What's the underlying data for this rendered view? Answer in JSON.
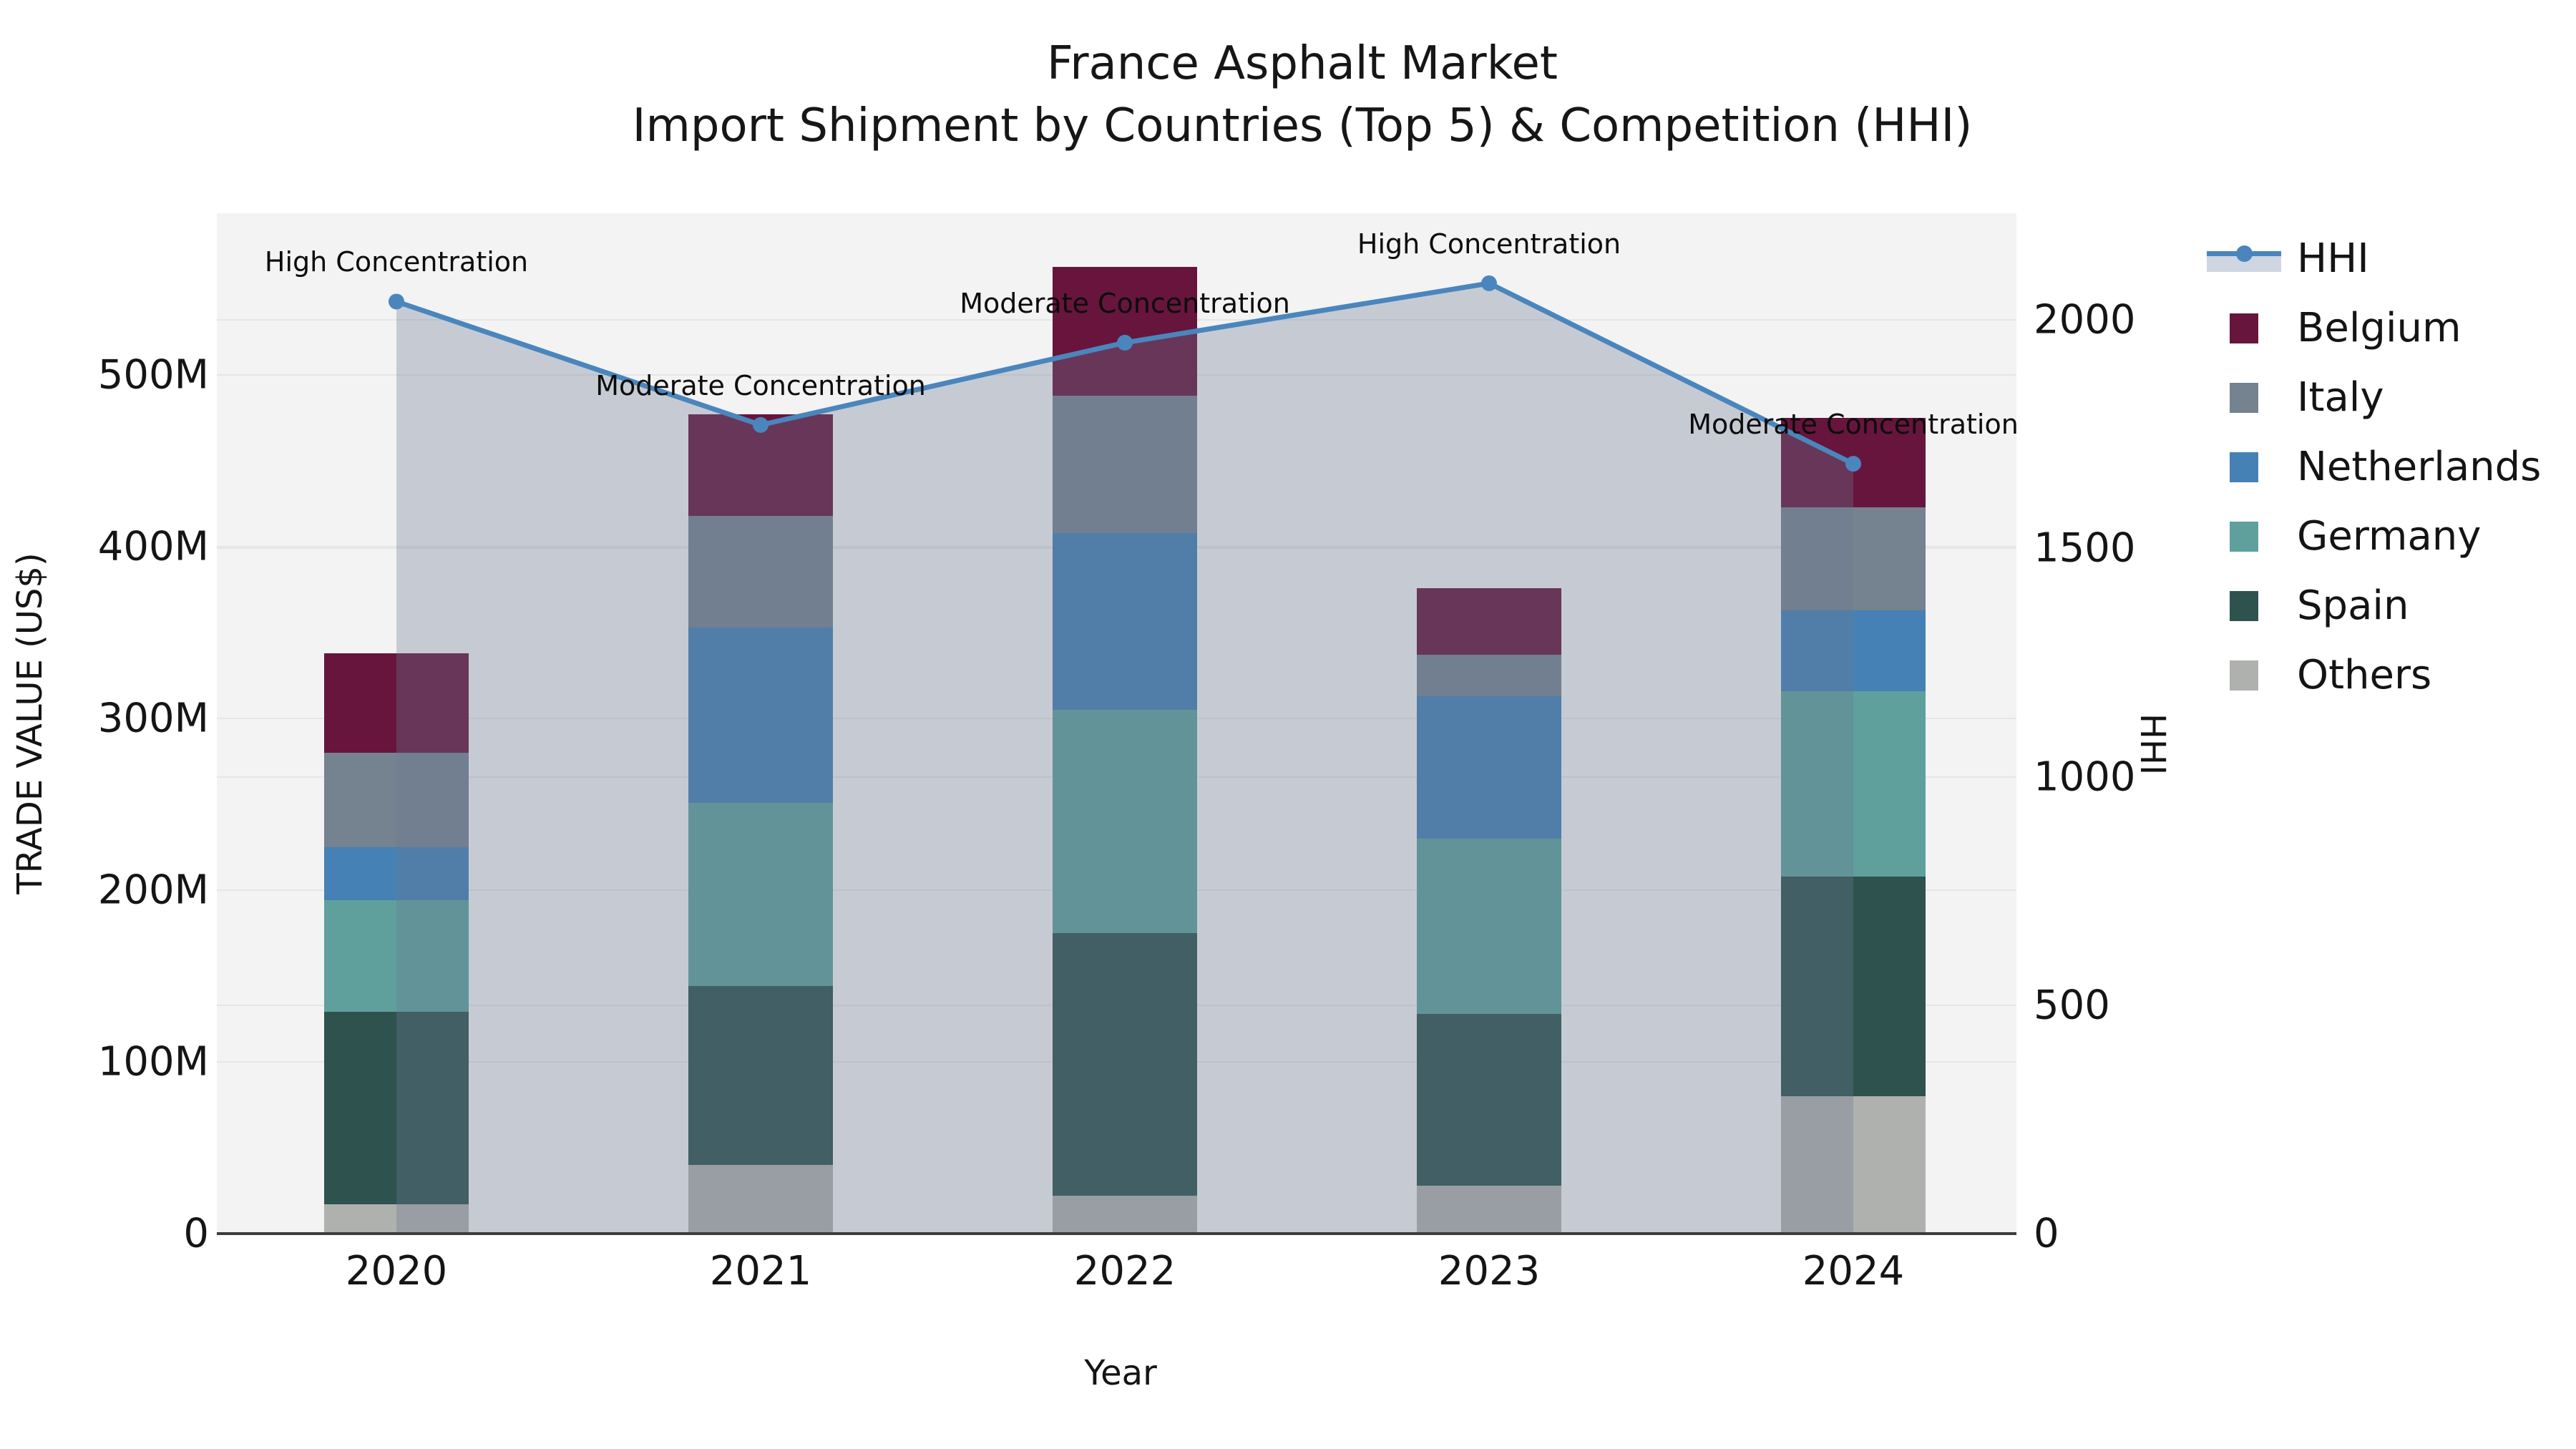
{
  "title": {
    "line1": "France Asphalt Market",
    "line2": "Import Shipment by Countries (Top 5) & Competition (HHI)"
  },
  "chart_data": {
    "type": "bar",
    "subtype": "stacked bars (left axis) with HHI line + filled area (right axis)",
    "categories": [
      "2020",
      "2021",
      "2022",
      "2023",
      "2024"
    ],
    "bar_value_unit": "USD millions (trade value)",
    "series": [
      {
        "name": "Others",
        "color": "#afb1ae",
        "values": [
          17,
          40,
          22,
          28,
          80
        ]
      },
      {
        "name": "Spain",
        "color": "#2e524e",
        "values": [
          112,
          104,
          153,
          100,
          128
        ]
      },
      {
        "name": "Germany",
        "color": "#5fa09d",
        "values": [
          65,
          107,
          130,
          102,
          108
        ]
      },
      {
        "name": "Netherlands",
        "color": "#4581b5",
        "values": [
          31,
          102,
          103,
          83,
          47
        ]
      },
      {
        "name": "Italy",
        "color": "#75828f",
        "values": [
          55,
          65,
          80,
          24,
          60
        ]
      },
      {
        "name": "Belgium",
        "color": "#67153c",
        "values": [
          58,
          59,
          75,
          39,
          52
        ]
      }
    ],
    "bar_totals": [
      338,
      477,
      563,
      376,
      475
    ],
    "line_series": {
      "name": "HHI",
      "color": "#4a86bd",
      "area_fill": "rgba(105,120,145,0.33)",
      "values": [
        2040,
        1770,
        1950,
        2080,
        1685
      ]
    },
    "annotations": [
      {
        "year": "2020",
        "text": "High Concentration"
      },
      {
        "year": "2021",
        "text": "Moderate Concentration"
      },
      {
        "year": "2022",
        "text": "Moderate Concentration"
      },
      {
        "year": "2023",
        "text": "High Concentration"
      },
      {
        "year": "2024",
        "text": "Moderate Concentration"
      }
    ],
    "axes": {
      "x_title": "Year",
      "y_left_title": "TRADE VALUE (US$)",
      "y_right_title": "HHI",
      "y_left_ticks": [
        {
          "v": 0,
          "label": "0"
        },
        {
          "v": 100,
          "label": "100M"
        },
        {
          "v": 200,
          "label": "200M"
        },
        {
          "v": 300,
          "label": "300M"
        },
        {
          "v": 400,
          "label": "400M"
        },
        {
          "v": 500,
          "label": "500M"
        }
      ],
      "y_left_max_visible": 594,
      "y_right_ticks": [
        {
          "v": 0,
          "label": "0"
        },
        {
          "v": 500,
          "label": "500"
        },
        {
          "v": 1000,
          "label": "1000"
        },
        {
          "v": 1500,
          "label": "1500"
        },
        {
          "v": 2000,
          "label": "2000"
        }
      ],
      "grid": true
    },
    "legend": {
      "position": "right-outside-top",
      "entries": [
        "HHI",
        "Belgium",
        "Italy",
        "Netherlands",
        "Germany",
        "Spain",
        "Others"
      ]
    }
  },
  "colors": {
    "plot_background": "#f3f3f4",
    "gridline": "#e5e6e8",
    "axis_line": "#3d3d3d",
    "text": "#141414",
    "hhi_legend_band": "#cfd6e2"
  }
}
